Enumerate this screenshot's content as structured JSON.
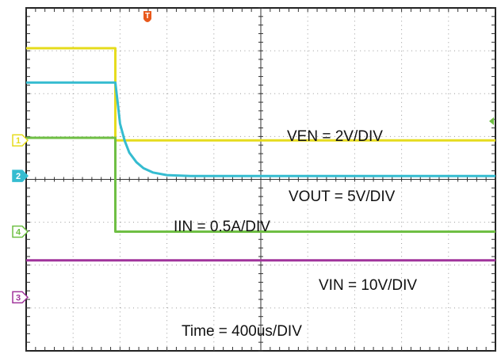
{
  "chart_data": {
    "type": "line",
    "grid": true,
    "x_divisions": 10,
    "y_divisions": 8,
    "time_per_div": "400us/DIV",
    "trigger_marker": "T",
    "ranges": {
      "x": [
        0,
        10
      ],
      "y": [
        0,
        8
      ]
    },
    "series": [
      {
        "channel": "1",
        "label": "VEN = 2V/DIV",
        "color": "#e6dc1e",
        "points": [
          [
            0,
            7.06
          ],
          [
            1.9,
            7.06
          ],
          [
            1.9,
            4.91
          ],
          [
            10,
            4.91
          ]
        ]
      },
      {
        "channel": "2",
        "label": "VOUT = 5V/DIV",
        "color": "#35bcd0",
        "points": [
          [
            0,
            6.26
          ],
          [
            1.9,
            6.26
          ],
          [
            1.95,
            5.8
          ],
          [
            2.0,
            5.3
          ],
          [
            2.1,
            4.9
          ],
          [
            2.2,
            4.62
          ],
          [
            2.35,
            4.4
          ],
          [
            2.5,
            4.26
          ],
          [
            2.7,
            4.16
          ],
          [
            3.0,
            4.1
          ],
          [
            3.5,
            4.08
          ],
          [
            10,
            4.08
          ]
        ]
      },
      {
        "channel": "4",
        "label": "IIN = 0.5A/DIV",
        "color": "#6fbf44",
        "points": [
          [
            0,
            4.97
          ],
          [
            1.9,
            4.97
          ],
          [
            1.9,
            2.78
          ],
          [
            10,
            2.78
          ]
        ]
      },
      {
        "channel": "3",
        "label": "VIN = 10V/DIV",
        "color": "#a0349b",
        "points": [
          [
            0,
            2.11
          ],
          [
            10,
            2.11
          ]
        ]
      }
    ],
    "time_label": "Time = 400us/DIV"
  }
}
